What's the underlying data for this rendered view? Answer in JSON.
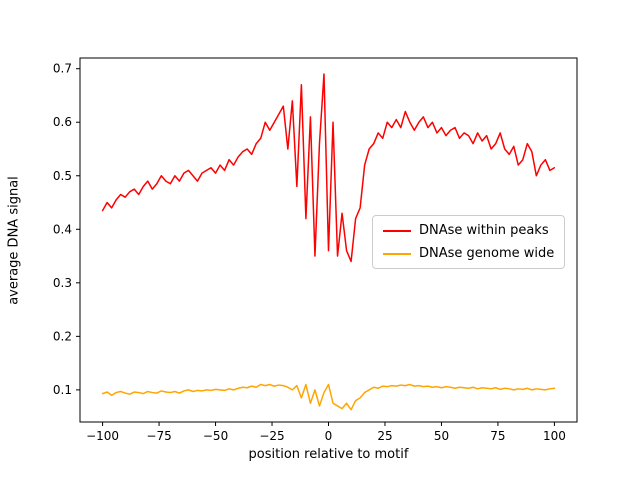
{
  "figure": {
    "background": "#ffffff",
    "frame_color": "#000000",
    "tick_color": "#000000"
  },
  "chart_data": {
    "type": "line",
    "title": "",
    "xlabel": "position relative to motif",
    "ylabel": "average DNA signal",
    "xlim": [
      -110,
      110
    ],
    "ylim": [
      0.04,
      0.72
    ],
    "xticks": [
      -100,
      -75,
      -50,
      -25,
      0,
      25,
      50,
      75,
      100
    ],
    "yticks": [
      0.1,
      0.2,
      0.3,
      0.4,
      0.5,
      0.6,
      0.7
    ],
    "grid": false,
    "legend_position": "center right",
    "x": [
      -100,
      -98,
      -96,
      -94,
      -92,
      -90,
      -88,
      -86,
      -84,
      -82,
      -80,
      -78,
      -76,
      -74,
      -72,
      -70,
      -68,
      -66,
      -64,
      -62,
      -60,
      -58,
      -56,
      -54,
      -52,
      -50,
      -48,
      -46,
      -44,
      -42,
      -40,
      -38,
      -36,
      -34,
      -32,
      -30,
      -28,
      -26,
      -24,
      -22,
      -20,
      -18,
      -16,
      -14,
      -12,
      -10,
      -8,
      -6,
      -4,
      -2,
      0,
      2,
      4,
      6,
      8,
      10,
      12,
      14,
      16,
      18,
      20,
      22,
      24,
      26,
      28,
      30,
      32,
      34,
      36,
      38,
      40,
      42,
      44,
      46,
      48,
      50,
      52,
      54,
      56,
      58,
      60,
      62,
      64,
      66,
      68,
      70,
      72,
      74,
      76,
      78,
      80,
      82,
      84,
      86,
      88,
      90,
      92,
      94,
      96,
      98,
      100
    ],
    "series": [
      {
        "name": "DNAse within peaks",
        "color": "#ff0000",
        "values": [
          0.435,
          0.45,
          0.44,
          0.455,
          0.465,
          0.46,
          0.47,
          0.475,
          0.465,
          0.48,
          0.49,
          0.475,
          0.485,
          0.5,
          0.49,
          0.485,
          0.5,
          0.49,
          0.505,
          0.51,
          0.5,
          0.49,
          0.505,
          0.51,
          0.515,
          0.505,
          0.52,
          0.51,
          0.53,
          0.52,
          0.535,
          0.545,
          0.55,
          0.54,
          0.56,
          0.57,
          0.6,
          0.585,
          0.6,
          0.615,
          0.63,
          0.55,
          0.64,
          0.48,
          0.67,
          0.42,
          0.61,
          0.35,
          0.56,
          0.69,
          0.36,
          0.6,
          0.35,
          0.43,
          0.36,
          0.34,
          0.42,
          0.44,
          0.52,
          0.55,
          0.56,
          0.58,
          0.57,
          0.6,
          0.59,
          0.605,
          0.59,
          0.62,
          0.6,
          0.585,
          0.6,
          0.61,
          0.59,
          0.6,
          0.58,
          0.59,
          0.575,
          0.585,
          0.59,
          0.57,
          0.58,
          0.575,
          0.56,
          0.58,
          0.565,
          0.575,
          0.55,
          0.56,
          0.58,
          0.55,
          0.54,
          0.555,
          0.52,
          0.53,
          0.56,
          0.545,
          0.5,
          0.52,
          0.53,
          0.51,
          0.515
        ]
      },
      {
        "name": "DNAse genome wide",
        "color": "#ffa500",
        "values": [
          0.093,
          0.096,
          0.09,
          0.095,
          0.097,
          0.094,
          0.092,
          0.096,
          0.095,
          0.093,
          0.097,
          0.095,
          0.094,
          0.098,
          0.096,
          0.095,
          0.097,
          0.094,
          0.098,
          0.1,
          0.097,
          0.099,
          0.098,
          0.1,
          0.099,
          0.101,
          0.1,
          0.099,
          0.102,
          0.1,
          0.103,
          0.105,
          0.104,
          0.107,
          0.105,
          0.11,
          0.108,
          0.11,
          0.107,
          0.109,
          0.108,
          0.105,
          0.1,
          0.108,
          0.085,
          0.11,
          0.075,
          0.1,
          0.07,
          0.095,
          0.11,
          0.075,
          0.07,
          0.065,
          0.075,
          0.063,
          0.08,
          0.085,
          0.095,
          0.1,
          0.105,
          0.103,
          0.107,
          0.106,
          0.108,
          0.107,
          0.109,
          0.108,
          0.11,
          0.107,
          0.108,
          0.106,
          0.107,
          0.105,
          0.106,
          0.104,
          0.106,
          0.105,
          0.103,
          0.105,
          0.104,
          0.103,
          0.105,
          0.102,
          0.104,
          0.103,
          0.102,
          0.104,
          0.101,
          0.103,
          0.102,
          0.1,
          0.102,
          0.101,
          0.103,
          0.1,
          0.102,
          0.101,
          0.1,
          0.102,
          0.103
        ]
      }
    ]
  }
}
